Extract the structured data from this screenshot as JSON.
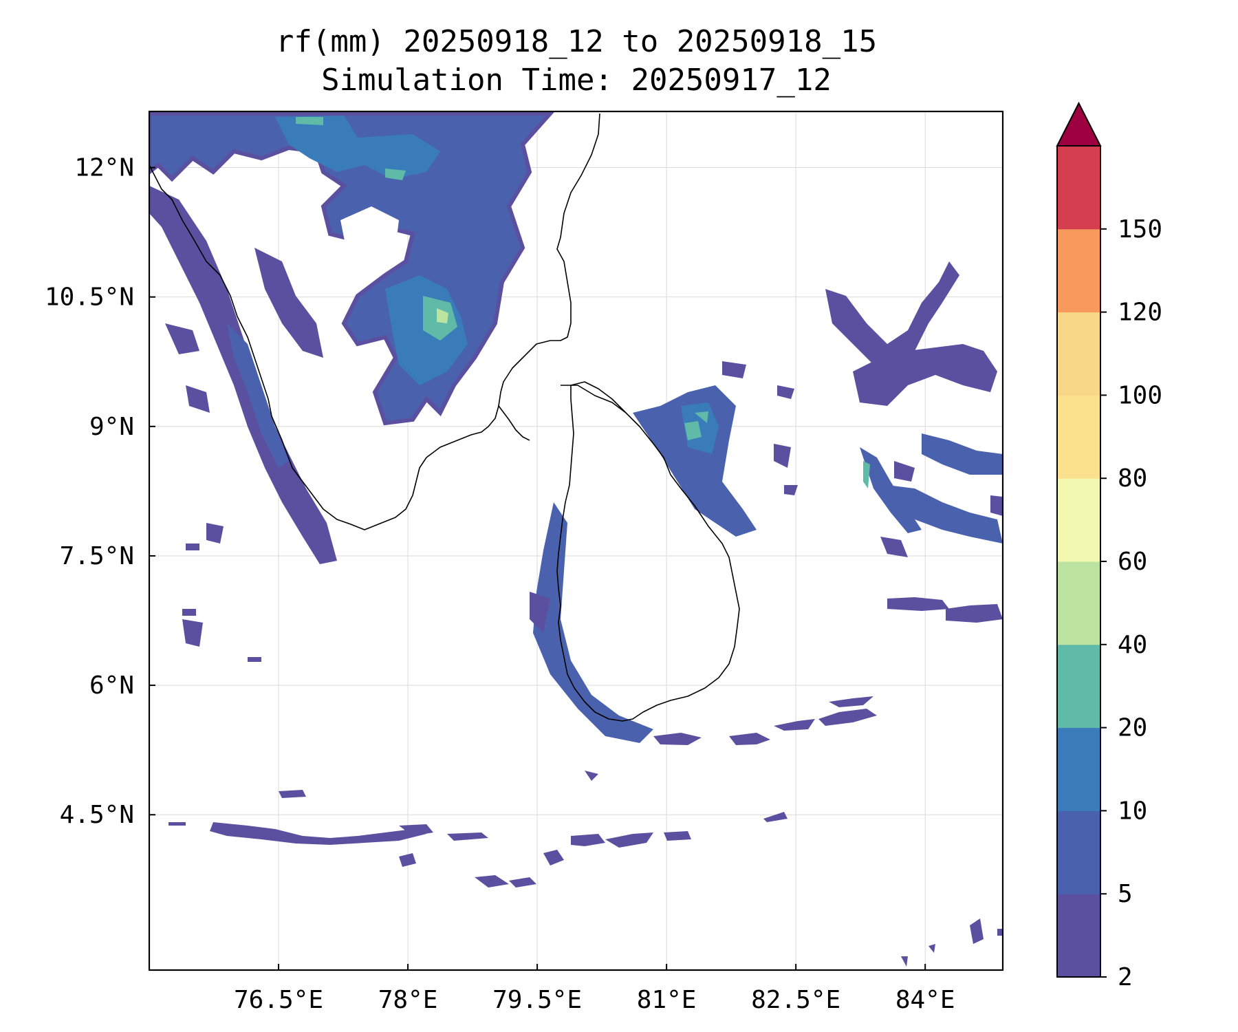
{
  "title": {
    "line1": "rf(mm) 20250918_12 to 20250918_15",
    "line2": "Simulation Time: 20250917_12"
  },
  "map": {
    "lon_range": [
      75.0,
      84.9
    ],
    "lat_range": [
      2.7,
      12.65
    ],
    "lon_ticks": [
      {
        "value": 76.5,
        "label": "76.5°E"
      },
      {
        "value": 78.0,
        "label": "78°E"
      },
      {
        "value": 79.5,
        "label": "79.5°E"
      },
      {
        "value": 81.0,
        "label": "81°E"
      },
      {
        "value": 82.5,
        "label": "82.5°E"
      },
      {
        "value": 84.0,
        "label": "84°E"
      }
    ],
    "lat_ticks": [
      {
        "value": 12.0,
        "label": "12°N"
      },
      {
        "value": 10.5,
        "label": "10.5°N"
      },
      {
        "value": 9.0,
        "label": "9°N"
      },
      {
        "value": 7.5,
        "label": "7.5°N"
      },
      {
        "value": 6.0,
        "label": "6°N"
      },
      {
        "value": 4.5,
        "label": "4.5°N"
      }
    ],
    "gridlines": true
  },
  "colorbar": {
    "levels": [
      2,
      5,
      10,
      20,
      40,
      60,
      80,
      100,
      120,
      150
    ],
    "labels": [
      "2",
      "5",
      "10",
      "20",
      "40",
      "60",
      "80",
      "100",
      "120",
      "150"
    ],
    "colors": [
      "#5b50a0",
      "#4a62ad",
      "#3a7cba",
      "#5fbaa8",
      "#bce3a0",
      "#f2f8b0",
      "#fbe08e",
      "#f8d788",
      "#f79a5b",
      "#d53e4f"
    ],
    "extend_color": "#9e0142",
    "extend": "max"
  },
  "rain_colors": {
    "light": "#5b50a0",
    "moderate": "#4a62ad",
    "heavy": "#3a7cba",
    "very_heavy": "#5fbaa8",
    "peak": "#bce3a0"
  }
}
